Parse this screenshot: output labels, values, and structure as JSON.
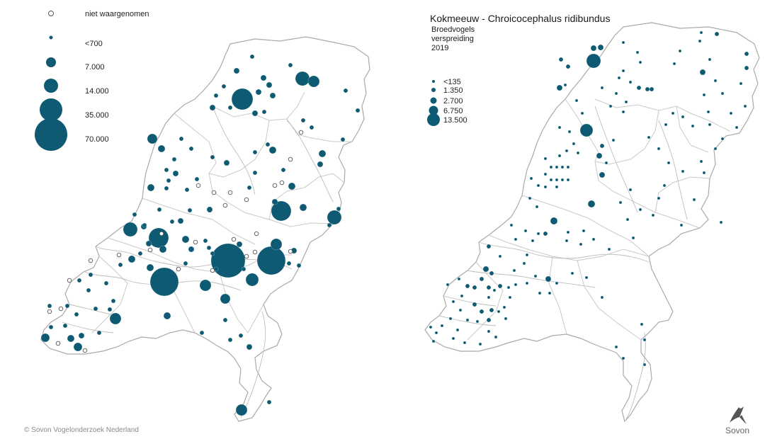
{
  "left_map": {
    "legend": [
      {
        "label": "niet waargenomen"
      },
      {
        "label": "<700"
      },
      {
        "label": "7.000"
      },
      {
        "label": "14.000"
      },
      {
        "label": "35.000"
      },
      {
        "label": "70.000"
      }
    ]
  },
  "right_map": {
    "title": "Kokmeeuw - Chroicocephalus ridibundus",
    "subtitle_line1": "Broedvogels",
    "subtitle_line2": "verspreiding",
    "year": "2019",
    "legend": [
      {
        "label": "<135"
      },
      {
        "label": "1.350"
      },
      {
        "label": "2.700"
      },
      {
        "label": "6.750"
      },
      {
        "label": "13.500"
      }
    ]
  },
  "footer": {
    "copyright": "© Sovon Vogelonderzoek Nederland",
    "logo_text": "Sovon"
  },
  "colors": {
    "marker": "#0e5a72",
    "not_observed_fill": "#ffffff",
    "not_observed_stroke": "#555555",
    "outline": "#a9a9a9"
  }
}
